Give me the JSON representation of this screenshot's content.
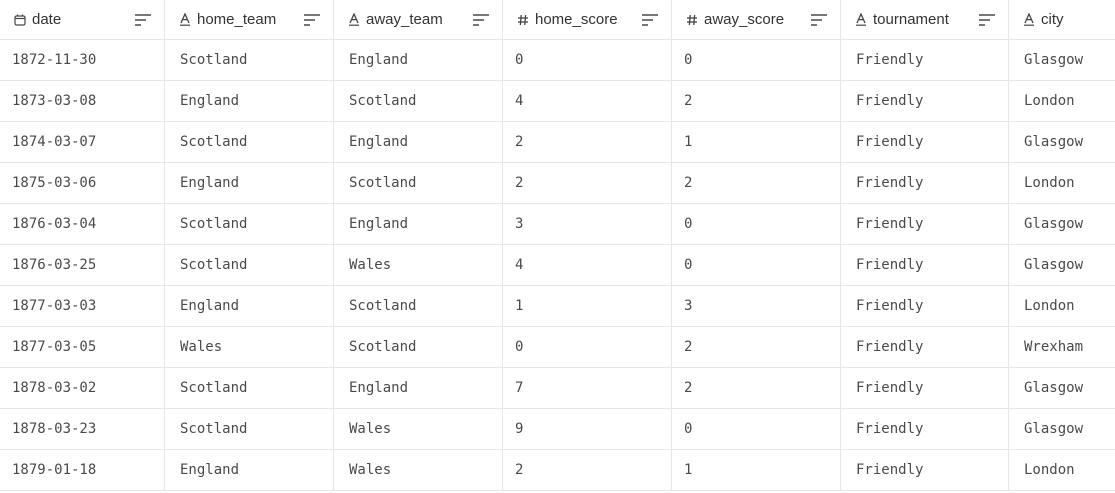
{
  "columns": [
    {
      "name": "date",
      "type_icon": "calendar-icon"
    },
    {
      "name": "home_team",
      "type_icon": "text-type-icon"
    },
    {
      "name": "away_team",
      "type_icon": "text-type-icon"
    },
    {
      "name": "home_score",
      "type_icon": "hash-icon"
    },
    {
      "name": "away_score",
      "type_icon": "hash-icon"
    },
    {
      "name": "tournament",
      "type_icon": "text-type-icon"
    },
    {
      "name": "city",
      "type_icon": "text-type-icon"
    }
  ],
  "rows": [
    [
      "1872-11-30",
      "Scotland",
      "England",
      "0",
      "0",
      "Friendly",
      "Glasgow"
    ],
    [
      "1873-03-08",
      "England",
      "Scotland",
      "4",
      "2",
      "Friendly",
      "London"
    ],
    [
      "1874-03-07",
      "Scotland",
      "England",
      "2",
      "1",
      "Friendly",
      "Glasgow"
    ],
    [
      "1875-03-06",
      "England",
      "Scotland",
      "2",
      "2",
      "Friendly",
      "London"
    ],
    [
      "1876-03-04",
      "Scotland",
      "England",
      "3",
      "0",
      "Friendly",
      "Glasgow"
    ],
    [
      "1876-03-25",
      "Scotland",
      "Wales",
      "4",
      "0",
      "Friendly",
      "Glasgow"
    ],
    [
      "1877-03-03",
      "England",
      "Scotland",
      "1",
      "3",
      "Friendly",
      "London"
    ],
    [
      "1877-03-05",
      "Wales",
      "Scotland",
      "0",
      "2",
      "Friendly",
      "Wrexham"
    ],
    [
      "1878-03-02",
      "Scotland",
      "England",
      "7",
      "2",
      "Friendly",
      "Glasgow"
    ],
    [
      "1878-03-23",
      "Scotland",
      "Wales",
      "9",
      "0",
      "Friendly",
      "Glasgow"
    ],
    [
      "1879-01-18",
      "England",
      "Wales",
      "2",
      "1",
      "Friendly",
      "London"
    ]
  ]
}
